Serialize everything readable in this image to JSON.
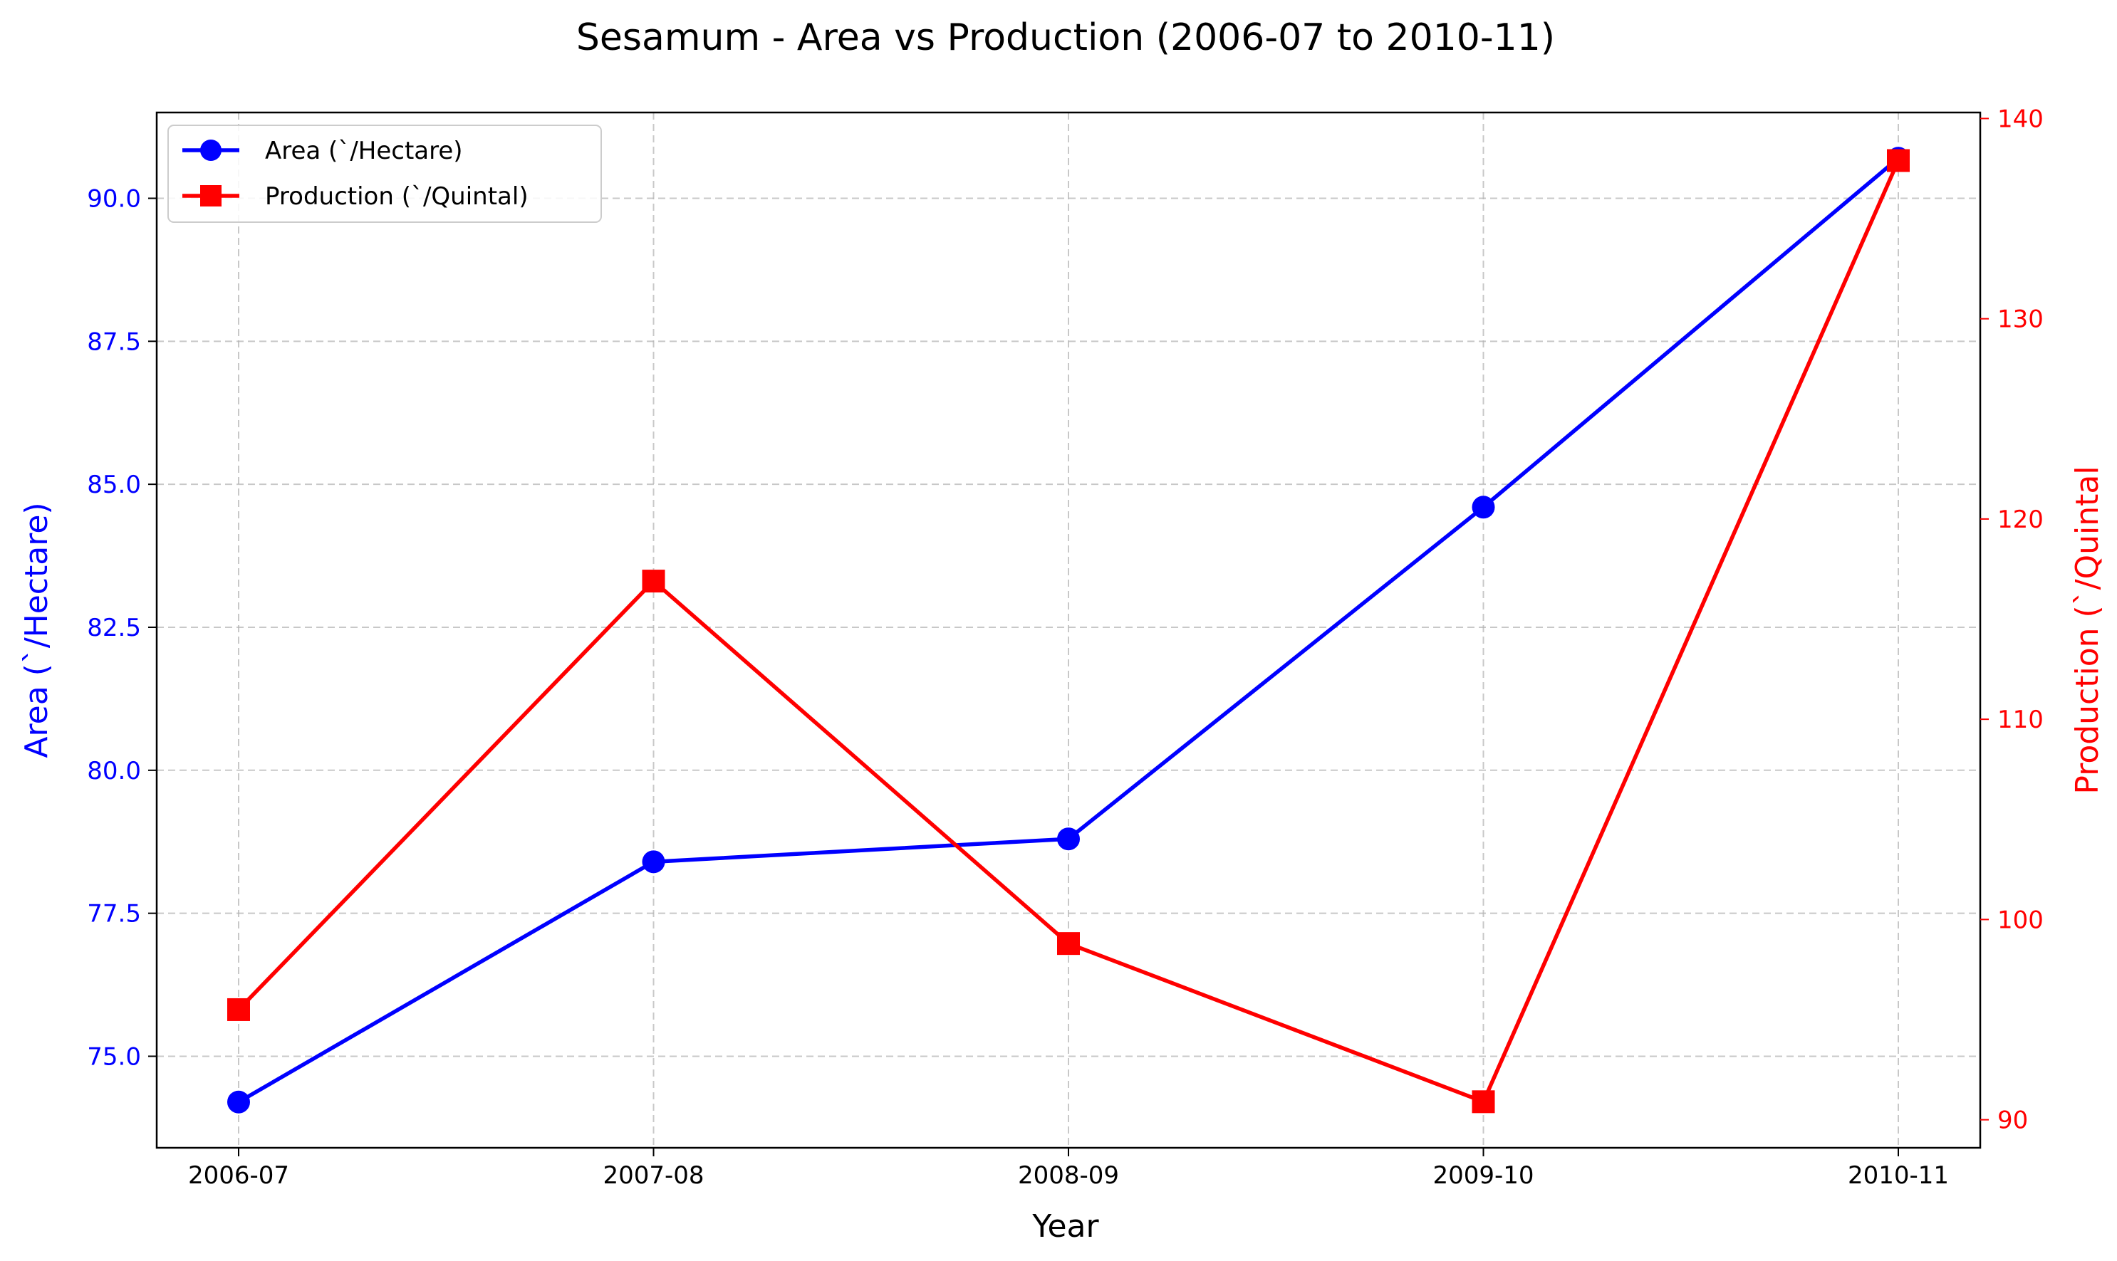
{
  "chart_data": {
    "type": "line",
    "title": "Sesamum - Area vs Production (2006-07 to 2010-11)",
    "xlabel": "Year",
    "categories": [
      "2006-07",
      "2007-08",
      "2008-09",
      "2009-10",
      "2010-11"
    ],
    "y_left": {
      "label": "Area (`/Hectare)",
      "ylim": [
        73.4,
        91.5
      ],
      "ticks": [
        "75.0",
        "77.5",
        "80.0",
        "82.5",
        "85.0",
        "87.5",
        "90.0"
      ],
      "tick_values": [
        75.0,
        77.5,
        80.0,
        82.5,
        85.0,
        87.5,
        90.0
      ],
      "color": "#0000ff"
    },
    "y_right": {
      "label": "Production (`/Quintal",
      "ylim": [
        88.6,
        140.3
      ],
      "ticks": [
        "90",
        "100",
        "110",
        "120",
        "130",
        "140"
      ],
      "tick_values": [
        90,
        100,
        110,
        120,
        130,
        140
      ],
      "color": "#ff0000"
    },
    "series": [
      {
        "name": "Area (`/Hectare)",
        "axis": "left",
        "marker": "circle",
        "color": "#0000ff",
        "values": [
          74.2,
          78.4,
          78.8,
          84.6,
          90.7
        ]
      },
      {
        "name": "Production (`/Quintal)",
        "axis": "right",
        "marker": "square",
        "color": "#ff0000",
        "values": [
          95.5,
          116.9,
          98.8,
          90.9,
          137.9
        ]
      }
    ],
    "grid": true,
    "legend_position": "top-left"
  }
}
